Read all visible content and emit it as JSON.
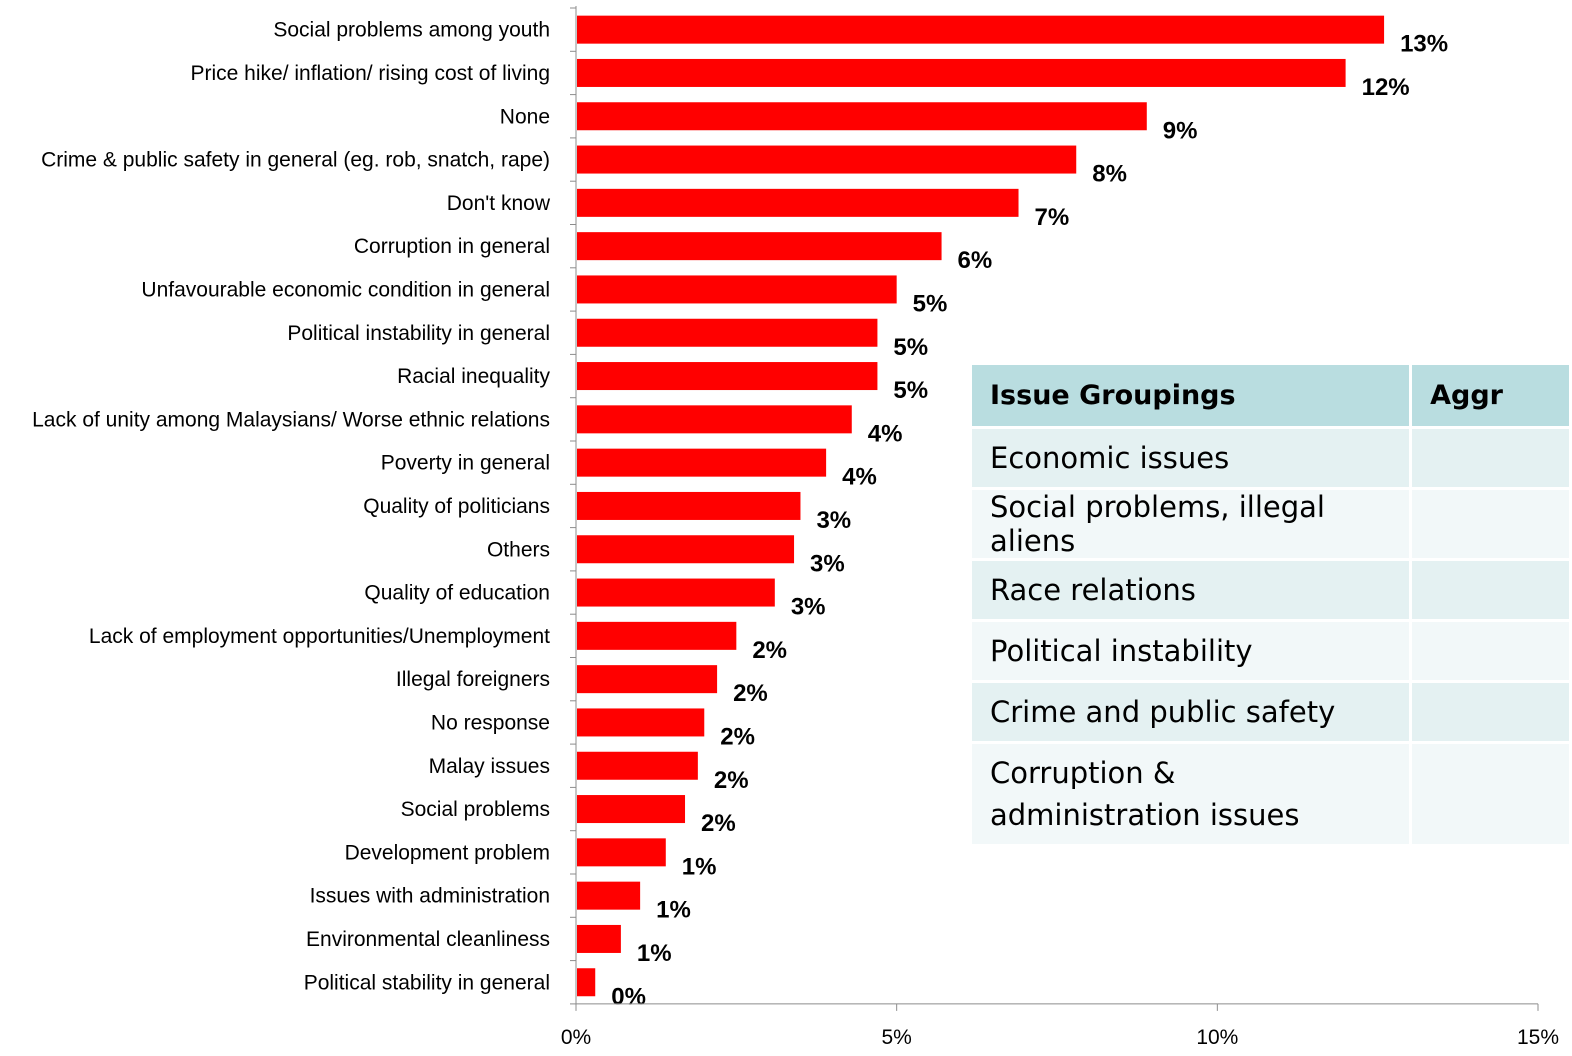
{
  "chart_data": {
    "type": "bar",
    "orientation": "horizontal",
    "categories": [
      "Social problems among youth",
      "Price hike/ inflation/ rising cost of living",
      "None",
      "Crime & public safety in general (eg. rob, snatch, rape)",
      "Don't know",
      "Corruption in general",
      "Unfavourable economic condition in general",
      "Political instability in general",
      "Racial inequality",
      "Lack of unity among Malaysians/ Worse ethnic relations",
      "Poverty in general",
      "Quality of politicians",
      "Others",
      "Quality of education",
      "Lack of employment opportunities/Unemployment",
      "Illegal foreigners",
      "No response",
      "Malay issues",
      "Social problems",
      "Development problem",
      "Issues with administration",
      "Environmental cleanliness",
      "Political stability in general"
    ],
    "values": [
      12.6,
      12.0,
      8.9,
      7.8,
      6.9,
      5.7,
      5.0,
      4.7,
      4.7,
      4.3,
      3.9,
      3.5,
      3.4,
      3.1,
      2.5,
      2.2,
      2.0,
      1.9,
      1.7,
      1.4,
      1.0,
      0.7,
      0.3
    ],
    "value_labels": [
      "13%",
      "12%",
      "9%",
      "8%",
      "7%",
      "6%",
      "5%",
      "5%",
      "5%",
      "4%",
      "4%",
      "3%",
      "3%",
      "3%",
      "2%",
      "2%",
      "2%",
      "2%",
      "2%",
      "1%",
      "1%",
      "1%",
      "0%"
    ],
    "xlim": [
      0,
      15
    ],
    "xticks": [
      0,
      5,
      10,
      15
    ],
    "xtick_labels": [
      "0%",
      "5%",
      "10%",
      "15%"
    ],
    "bar_color": "#ff0000",
    "grid": false,
    "title": "",
    "xlabel": "",
    "ylabel": ""
  },
  "table": {
    "headers": [
      "Issue Groupings",
      "Aggr"
    ],
    "rows": [
      "Economic issues",
      "Social problems, illegal aliens",
      "Race relations",
      "Political instability",
      "Crime and public safety",
      "Corruption & administration issues"
    ]
  }
}
